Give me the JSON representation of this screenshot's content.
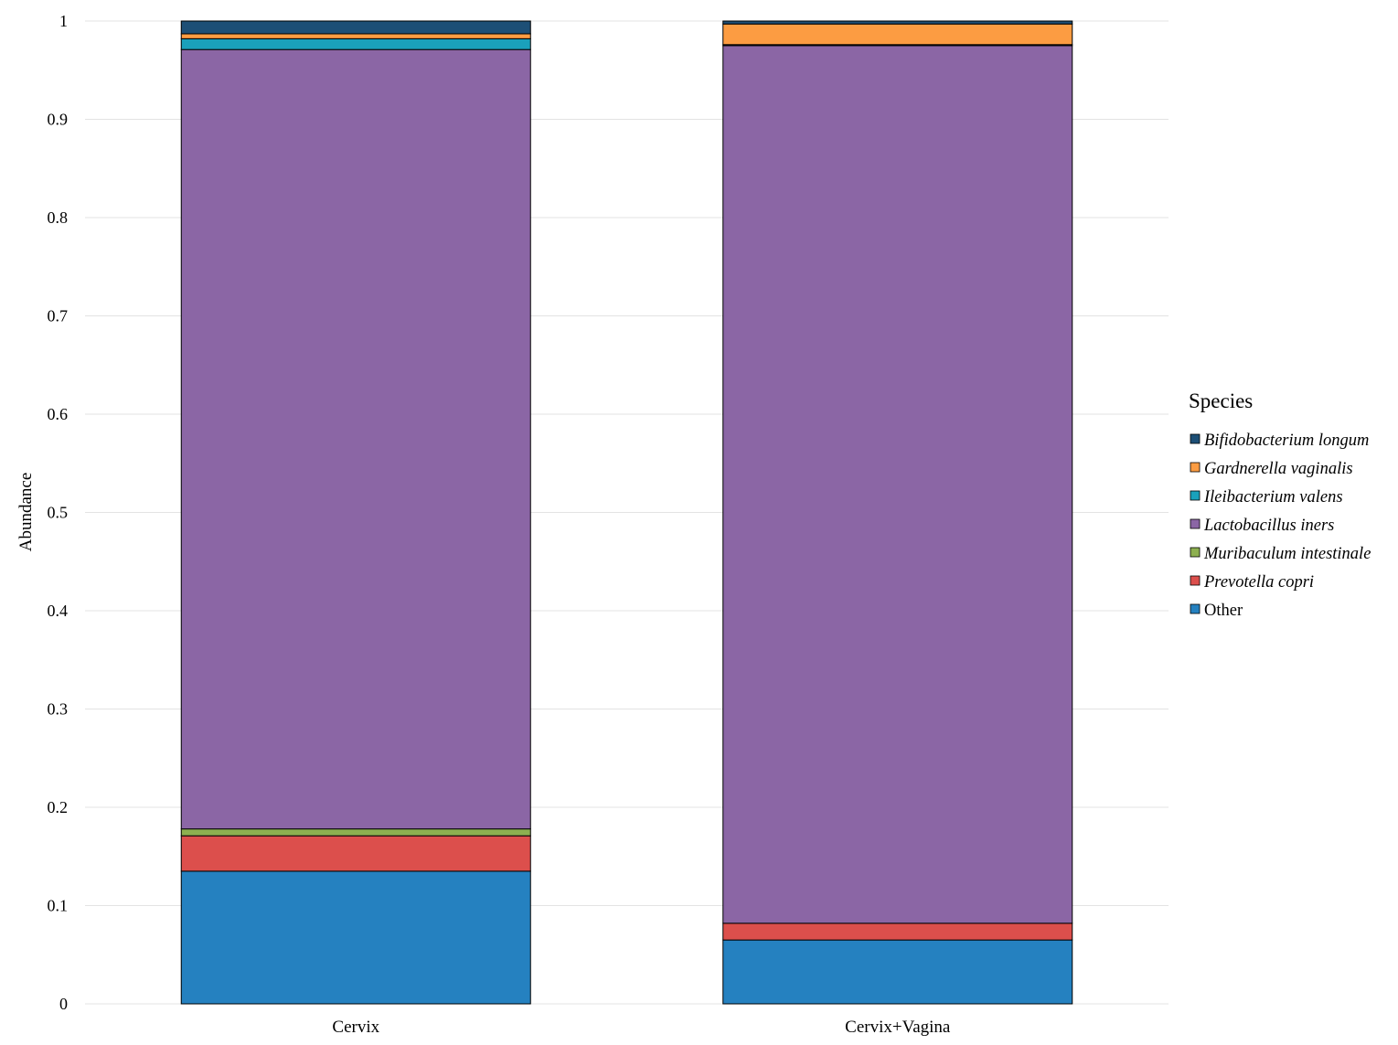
{
  "chart_data": {
    "type": "bar",
    "stacked": true,
    "title": "",
    "xlabel": "",
    "ylabel": "Abundance",
    "ylim": [
      0,
      1
    ],
    "yticks": [
      "0",
      "0.1",
      "0.2",
      "0.3",
      "0.4",
      "0.5",
      "0.6",
      "0.7",
      "0.8",
      "0.9",
      "1"
    ],
    "grid": true,
    "categories": [
      "Cervix",
      "Cervix+Vagina"
    ],
    "legend": {
      "title": "Species",
      "position": "right"
    },
    "series": [
      {
        "name": "Other",
        "italic": false,
        "color": "#2581c0",
        "values": [
          0.135,
          0.065
        ]
      },
      {
        "name": "Prevotella copri",
        "italic": true,
        "color": "#dc4f4c",
        "values": [
          0.036,
          0.017
        ]
      },
      {
        "name": "Muribaculum intestinale",
        "italic": true,
        "color": "#8db050",
        "values": [
          0.007,
          0.0
        ]
      },
      {
        "name": "Lactobacillus iners",
        "italic": true,
        "color": "#8b66a5",
        "values": [
          0.793,
          0.893
        ]
      },
      {
        "name": "Ileibacterium valens",
        "italic": true,
        "color": "#1aa1bb",
        "values": [
          0.011,
          0.001
        ]
      },
      {
        "name": "Gardnerella vaginalis",
        "italic": true,
        "color": "#fc9c42",
        "values": [
          0.005,
          0.021
        ]
      },
      {
        "name": "Bifidobacterium longum",
        "italic": true,
        "color": "#1d4f76",
        "values": [
          0.013,
          0.003
        ]
      }
    ],
    "legend_order": [
      "Bifidobacterium longum",
      "Gardnerella vaginalis",
      "Ileibacterium valens",
      "Lactobacillus iners",
      "Muribaculum intestinale",
      "Prevotella copri",
      "Other"
    ]
  }
}
